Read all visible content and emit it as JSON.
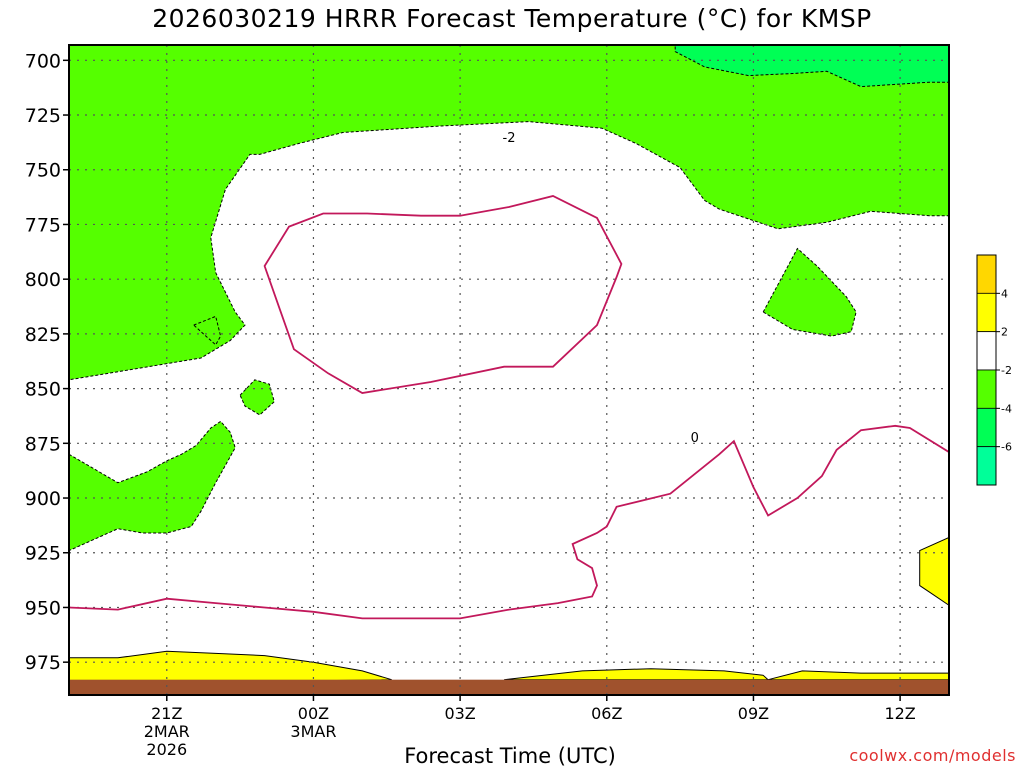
{
  "chart_data": {
    "type": "contour",
    "title": "2026030219 HRRR Forecast Temperature (°C) for KMSP",
    "xlabel": "Forecast Time (UTC)",
    "ylabel": "",
    "y_axis": {
      "scale": "pressure",
      "inverted": true,
      "range": [
        693,
        990
      ],
      "ticks": [
        700,
        725,
        750,
        775,
        800,
        825,
        850,
        875,
        900,
        925,
        950,
        975
      ]
    },
    "x_axis": {
      "range_hours": [
        -2,
        16
      ],
      "ticks": [
        {
          "hour": 0,
          "label": "21Z",
          "date": "2MAR",
          "year": "2026"
        },
        {
          "hour": 3,
          "label": "00Z",
          "date": "3MAR",
          "year": ""
        },
        {
          "hour": 6,
          "label": "03Z",
          "date": "",
          "year": ""
        },
        {
          "hour": 9,
          "label": "06Z",
          "date": "",
          "year": ""
        },
        {
          "hour": 12,
          "label": "09Z",
          "date": "",
          "year": ""
        },
        {
          "hour": 15,
          "label": "12Z",
          "date": "",
          "year": ""
        }
      ]
    },
    "grid": true,
    "colorbar": {
      "placement": "right",
      "bins": [
        {
          "color": "#ffd700",
          "label": "4"
        },
        {
          "color": "#ffff00",
          "label": "2"
        },
        {
          "color": "#ffffff",
          "label": "-2"
        },
        {
          "color": "#55ff00",
          "label": "-4"
        },
        {
          "color": "#00ff55",
          "label": "-6"
        },
        {
          "color": "#00ff99",
          "label": ""
        }
      ]
    },
    "contour_labels": [
      {
        "text": "-2",
        "hour": 7.0,
        "pressure": 735
      },
      {
        "text": "0",
        "hour": 10.8,
        "pressure": 872
      }
    ],
    "regions": [
      {
        "name": "cold-air-aloft-band",
        "value_range": [
          -4,
          -2
        ],
        "color": "#55ff00",
        "boundary": [
          [
            -2,
            693
          ],
          [
            16,
            693
          ],
          [
            16,
            771
          ],
          [
            15.6,
            771
          ],
          [
            14.4,
            769
          ],
          [
            13.5,
            774
          ],
          [
            12.5,
            777
          ],
          [
            11.3,
            768
          ],
          [
            11.0,
            764
          ],
          [
            10.5,
            749
          ],
          [
            9.6,
            738
          ],
          [
            8.9,
            731
          ],
          [
            7.4,
            728
          ],
          [
            5.6,
            730
          ],
          [
            3.6,
            733
          ],
          [
            2.7,
            738
          ],
          [
            1.9,
            743
          ],
          [
            1.7,
            743
          ],
          [
            1.2,
            759
          ],
          [
            0.9,
            781
          ],
          [
            1.0,
            797
          ],
          [
            1.4,
            815
          ],
          [
            1.6,
            821
          ],
          [
            1.3,
            828
          ],
          [
            0.7,
            836
          ],
          [
            -2,
            846
          ]
        ]
      },
      {
        "name": "colder-core",
        "value_range": [
          -6,
          -4
        ],
        "color": "#00ff55",
        "boundary": [
          [
            10.4,
            693
          ],
          [
            16,
            693
          ],
          [
            16,
            710
          ],
          [
            15.6,
            710
          ],
          [
            14.2,
            712
          ],
          [
            13.5,
            705
          ],
          [
            12.8,
            706
          ],
          [
            11.9,
            707
          ],
          [
            11.0,
            703
          ],
          [
            10.4,
            696
          ]
        ]
      },
      {
        "name": "low-level-cool-pocket",
        "value_range": [
          -4,
          -2
        ],
        "color": "#55ff00",
        "boundary": [
          [
            -2,
            880
          ],
          [
            -1.0,
            893
          ],
          [
            -0.4,
            888
          ],
          [
            0.0,
            883
          ],
          [
            0.3,
            880
          ],
          [
            0.6,
            876
          ],
          [
            0.9,
            868
          ],
          [
            1.1,
            865
          ],
          [
            1.3,
            870
          ],
          [
            1.4,
            877
          ],
          [
            1.0,
            893
          ],
          [
            0.7,
            906
          ],
          [
            0.5,
            913
          ],
          [
            0.0,
            916
          ],
          [
            -0.5,
            916
          ],
          [
            -1.0,
            914
          ],
          [
            -2,
            924
          ]
        ]
      },
      {
        "name": "small-cool-cell-a",
        "value_range": [
          -4,
          -2
        ],
        "color": "#55ff00",
        "boundary": [
          [
            0.55,
            821
          ],
          [
            1.0,
            817
          ],
          [
            1.1,
            826
          ],
          [
            1.0,
            830
          ],
          [
            0.8,
            826
          ]
        ]
      },
      {
        "name": "small-cool-cell-b",
        "value_range": [
          -4,
          -2
        ],
        "color": "#55ff00",
        "boundary": [
          [
            1.5,
            853
          ],
          [
            1.8,
            846
          ],
          [
            2.1,
            848
          ],
          [
            2.2,
            856
          ],
          [
            1.9,
            862
          ],
          [
            1.6,
            858
          ]
        ]
      },
      {
        "name": "mid-level-cool-cell",
        "value_range": [
          -4,
          -2
        ],
        "color": "#55ff00",
        "boundary": [
          [
            12.2,
            815
          ],
          [
            12.9,
            786
          ],
          [
            13.3,
            794
          ],
          [
            13.9,
            808
          ],
          [
            14.1,
            815
          ],
          [
            14.0,
            824
          ],
          [
            13.6,
            826
          ],
          [
            12.8,
            823
          ]
        ]
      },
      {
        "name": "surface-warm-layer",
        "value_range": [
          2,
          4
        ],
        "color": "#ffff00",
        "boundary": [
          [
            -2,
            973
          ],
          [
            -1,
            973
          ],
          [
            0,
            970
          ],
          [
            1,
            971
          ],
          [
            2,
            972
          ],
          [
            3,
            975
          ],
          [
            4,
            979
          ],
          [
            4.6,
            983
          ],
          [
            -2,
            985
          ]
        ]
      },
      {
        "name": "surface-warm-layer-east",
        "value_range": [
          2,
          4
        ],
        "color": "#ffff00",
        "boundary": [
          [
            6.9,
            983
          ],
          [
            8.5,
            979
          ],
          [
            9.9,
            978
          ],
          [
            11.4,
            979
          ],
          [
            12.2,
            981
          ],
          [
            12.3,
            983
          ]
        ]
      },
      {
        "name": "surface-warm-layer-far-east",
        "value_range": [
          2,
          4
        ],
        "color": "#ffff00",
        "boundary": [
          [
            12.3,
            983
          ],
          [
            13.0,
            979
          ],
          [
            14.2,
            980
          ],
          [
            16,
            980
          ],
          [
            16,
            983
          ]
        ]
      },
      {
        "name": "warm-edge-cell",
        "value_range": [
          2,
          4
        ],
        "color": "#ffff00",
        "boundary": [
          [
            16,
            918
          ],
          [
            15.4,
            924
          ],
          [
            15.4,
            940
          ],
          [
            15.6,
            943
          ],
          [
            16,
            949
          ]
        ]
      }
    ],
    "zero_isotherm_segments": [
      [
        [
          -2,
          950
        ],
        [
          -1,
          951
        ],
        [
          0,
          946
        ],
        [
          1,
          948
        ],
        [
          2,
          950
        ],
        [
          3,
          952
        ],
        [
          4,
          955
        ],
        [
          5,
          955
        ],
        [
          6,
          955
        ],
        [
          7,
          951
        ],
        [
          8,
          948
        ],
        [
          8.7,
          945
        ],
        [
          8.8,
          940
        ],
        [
          8.7,
          932
        ],
        [
          8.4,
          928
        ],
        [
          8.3,
          921
        ],
        [
          8.8,
          916
        ],
        [
          9.0,
          913
        ],
        [
          9.2,
          904
        ],
        [
          10.3,
          898
        ],
        [
          11.3,
          880
        ],
        [
          11.6,
          874
        ],
        [
          12.0,
          895
        ],
        [
          12.3,
          908
        ],
        [
          12.9,
          900
        ],
        [
          13.4,
          890
        ],
        [
          13.7,
          878
        ],
        [
          14.2,
          869
        ],
        [
          14.9,
          867
        ],
        [
          15.2,
          868
        ],
        [
          16,
          879
        ]
      ],
      [
        [
          2.0,
          794
        ],
        [
          2.5,
          776
        ],
        [
          3.2,
          770
        ],
        [
          4.1,
          770
        ],
        [
          5.2,
          771
        ],
        [
          6.0,
          771
        ],
        [
          7.0,
          767
        ],
        [
          7.9,
          762
        ],
        [
          8.8,
          772
        ],
        [
          9.3,
          793
        ],
        [
          9.2,
          799
        ],
        [
          8.8,
          821
        ],
        [
          7.9,
          840
        ],
        [
          6.9,
          840
        ],
        [
          5.4,
          847
        ],
        [
          4.0,
          852
        ],
        [
          3.3,
          843
        ],
        [
          2.6,
          832
        ],
        [
          2.3,
          813
        ]
      ]
    ],
    "terrain_fill": {
      "color": "#a0522d",
      "top_pressure": 983,
      "bottom_pressure": 990
    }
  },
  "attribution": "coolwx.com/models"
}
